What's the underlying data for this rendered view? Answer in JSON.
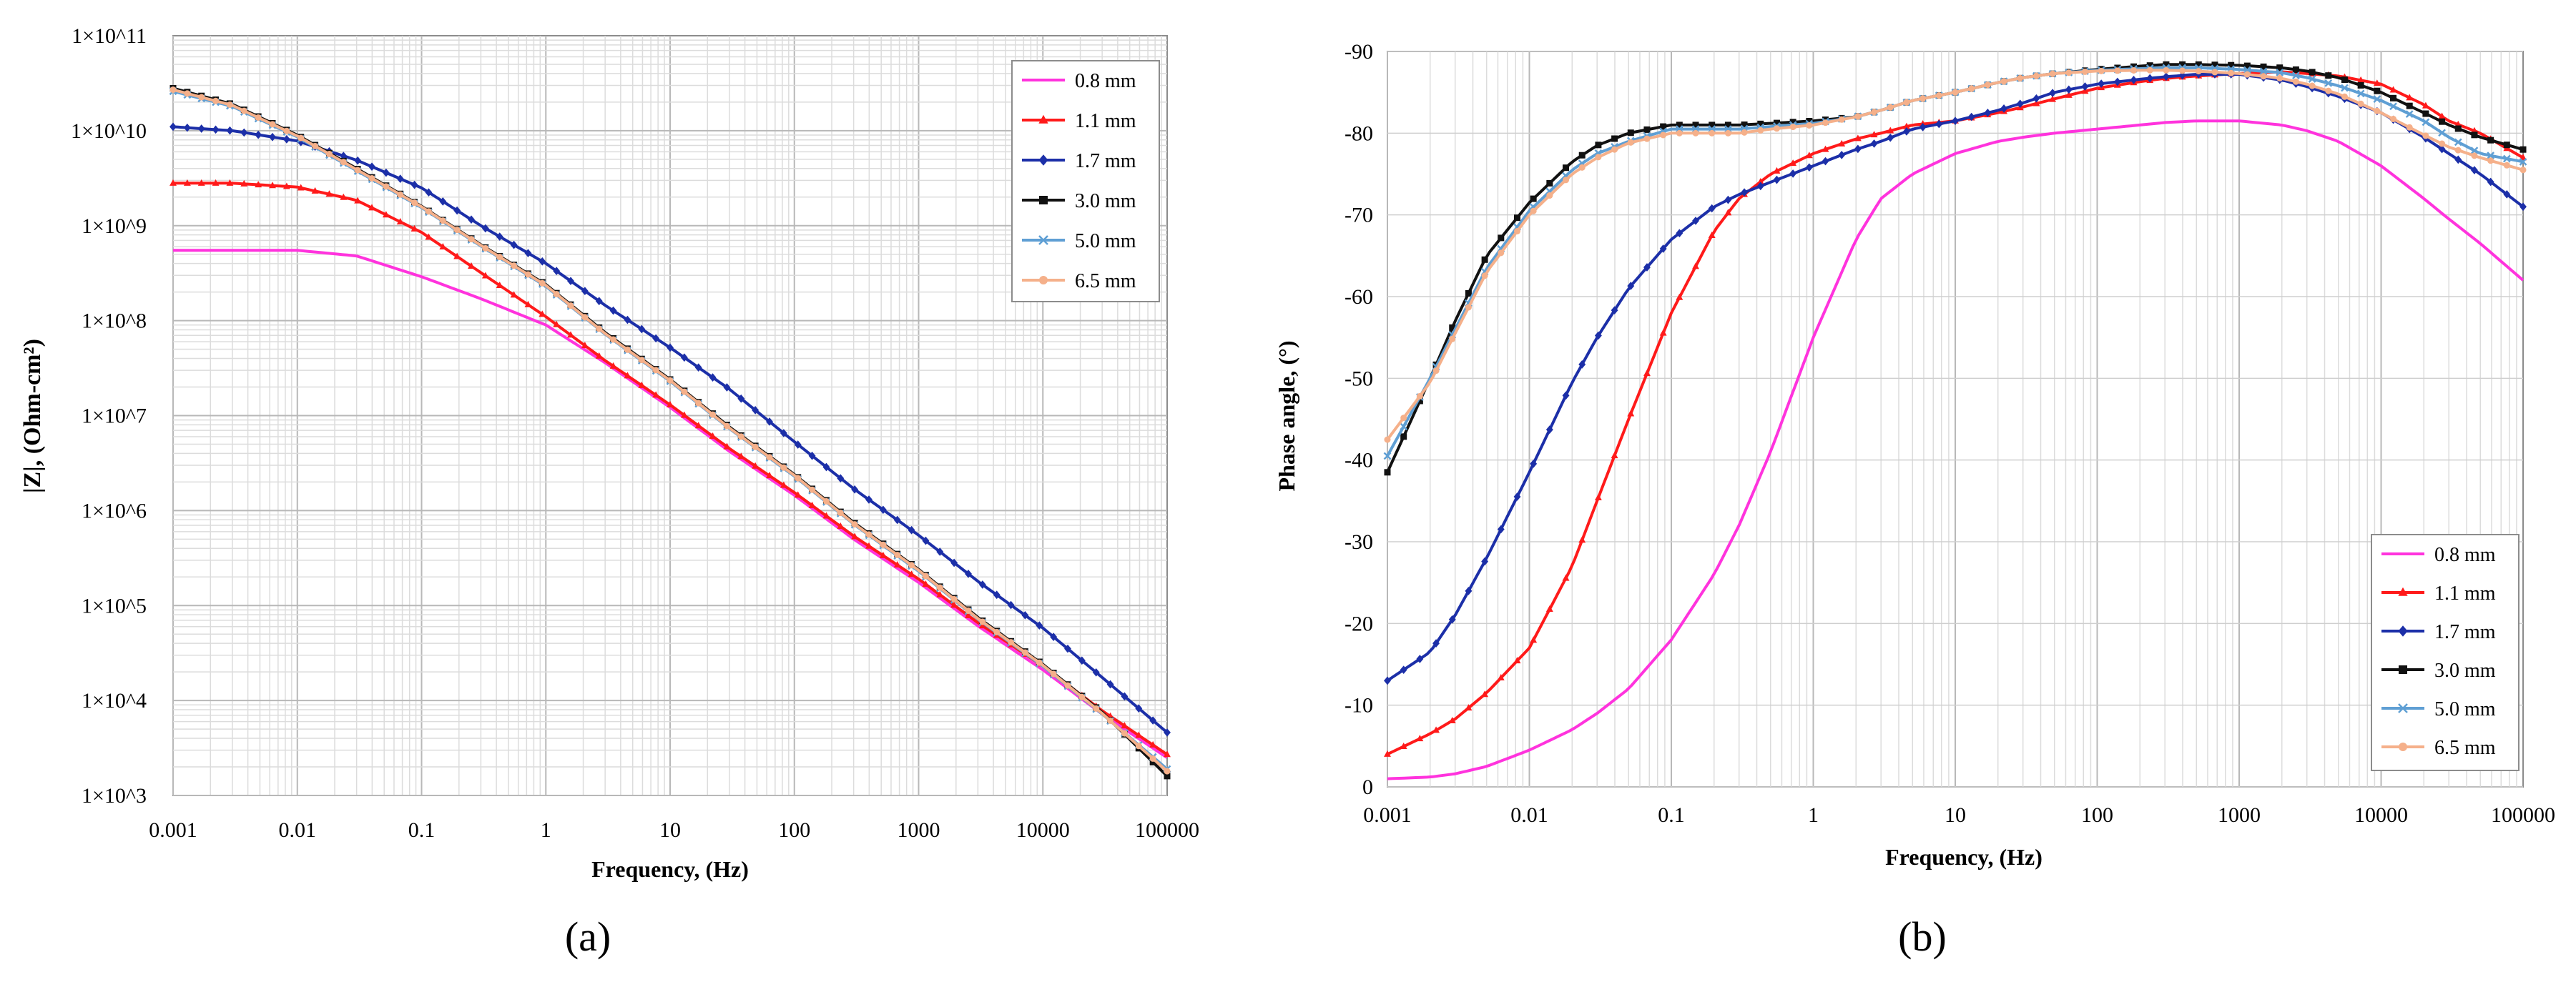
{
  "colors": {
    "0.8 mm": "#ff33dd",
    "1.1 mm": "#ff1a1a",
    "1.7 mm": "#1c2fa8",
    "3.0 mm": "#111111",
    "5.0 mm": "#5f9fd4",
    "6.5 mm": "#f5b08a"
  },
  "chart_data": [
    {
      "panel_label": "(a)",
      "type": "line",
      "x_scale": "log",
      "y_scale": "log",
      "title": "",
      "xlabel": "Frequency, (Hz)",
      "ylabel": "|Z|, (Ohm-cm²)",
      "xlim": [
        0.001,
        100000
      ],
      "ylim": [
        1000,
        100000000000
      ],
      "grid": true,
      "legend_position": "top-right",
      "x_ticks": [
        0.001,
        0.01,
        0.1,
        1,
        10,
        100,
        1000,
        10000,
        100000
      ],
      "x_tick_labels": [
        "0.001",
        "0.01",
        "0.1",
        "1",
        "10",
        "100",
        "1000",
        "10000",
        "100000"
      ],
      "y_ticks": [
        1000,
        10000,
        100000,
        1000000,
        10000000,
        100000000,
        1000000000,
        10000000000,
        100000000000
      ],
      "y_tick_labels": [
        "1×10^3",
        "1×10^4",
        "1×10^5",
        "1×10^6",
        "1×10^7",
        "1×10^8",
        "1×10^9",
        "1×10^10",
        "1×10^11"
      ],
      "x": [
        0.001,
        0.003,
        0.01,
        0.03,
        0.1,
        0.3,
        1,
        3,
        10,
        30,
        100,
        300,
        1000,
        3000,
        10000,
        30000,
        100000
      ],
      "series": [
        {
          "name": "0.8 mm",
          "marker": "none",
          "values": [
            550000000.0,
            550000000.0,
            550000000.0,
            480000000.0,
            290000000.0,
            170000000.0,
            90000000.0,
            36000000.0,
            12200000.0,
            4200000.0,
            1450000.0,
            500000.0,
            175000.0,
            61000.0,
            21000.0,
            7200.0,
            2500.0
          ]
        },
        {
          "name": "1.1 mm",
          "marker": "triangle",
          "values": [
            2800000000.0,
            2800000000.0,
            2550000000.0,
            1850000000.0,
            850000000.0,
            320000000.0,
            110000000.0,
            38000000.0,
            13000000.0,
            4500000.0,
            1550000.0,
            540000.0,
            190000.0,
            66000.0,
            23000.0,
            7800.0,
            2700.0
          ]
        },
        {
          "name": "1.7 mm",
          "marker": "diamond",
          "values": [
            11000000000.0,
            10000000000.0,
            7800000000.0,
            4900000000.0,
            2500000000.0,
            1000000000.0,
            400000000.0,
            145000000.0,
            52000000.0,
            19000000.0,
            5300000.0,
            1700000.0,
            550000.0,
            180000.0,
            58000.0,
            17500.0,
            4600.0
          ]
        },
        {
          "name": "3.0 mm",
          "marker": "square",
          "values": [
            28000000000.0,
            19000000000.0,
            9000000000.0,
            4000000000.0,
            1600000000.0,
            630000000.0,
            240000000.0,
            75000000.0,
            24000000.0,
            7600000.0,
            2400000.0,
            750000.0,
            240000.0,
            75000.0,
            24000.0,
            7500.0,
            1600.0
          ]
        },
        {
          "name": "5.0 mm",
          "marker": "x",
          "values": [
            26000000000.0,
            18000000000.0,
            8600000000.0,
            3800000000.0,
            1550000000.0,
            610000000.0,
            230000000.0,
            72000000.0,
            23000000.0,
            7300000.0,
            2300000.0,
            720000.0,
            230000.0,
            72000.0,
            23000.0,
            7200.0,
            1900.0
          ]
        },
        {
          "name": "6.5 mm",
          "marker": "circle",
          "values": [
            27000000000.0,
            18500000000.0,
            8800000000.0,
            3900000000.0,
            1580000000.0,
            620000000.0,
            235000000.0,
            73000000.0,
            23500000.0,
            7400000.0,
            2350000.0,
            730000.0,
            235000.0,
            73000.0,
            23500.0,
            7300.0,
            1800.0
          ]
        }
      ]
    },
    {
      "panel_label": "(b)",
      "type": "line",
      "x_scale": "log",
      "y_scale": "linear",
      "title": "",
      "xlabel": "Frequency, (Hz)",
      "ylabel": "Phase angle, (°)",
      "xlim": [
        0.001,
        100000
      ],
      "ylim": [
        0,
        -90
      ],
      "grid": true,
      "legend_position": "bottom-right",
      "x_ticks": [
        0.001,
        0.01,
        0.1,
        1,
        10,
        100,
        1000,
        10000,
        100000
      ],
      "x_tick_labels": [
        "0.001",
        "0.01",
        "0.1",
        "1",
        "10",
        "100",
        "1000",
        "10000",
        "100000"
      ],
      "y_ticks": [
        0,
        -10,
        -20,
        -30,
        -40,
        -50,
        -60,
        -70,
        -80,
        -90
      ],
      "y_tick_labels": [
        "0",
        "-10",
        "-20",
        "-30",
        "-40",
        "-50",
        "-60",
        "-70",
        "-80",
        "-90"
      ],
      "x": [
        0.001,
        0.002,
        0.003,
        0.005,
        0.01,
        0.02,
        0.03,
        0.05,
        0.1,
        0.2,
        0.3,
        0.5,
        1,
        2,
        3,
        5,
        10,
        20,
        30,
        50,
        100,
        200,
        300,
        500,
        1000,
        2000,
        3000,
        5000,
        10000,
        20000,
        30000,
        50000,
        100000
      ],
      "series": [
        {
          "name": "0.8 mm",
          "marker": "none",
          "values": [
            -1,
            -1.2,
            -1.6,
            -2.5,
            -4.5,
            -7,
            -9,
            -12,
            -18,
            -26,
            -32,
            -41,
            -55,
            -67,
            -72,
            -75,
            -77.5,
            -79,
            -79.5,
            -80,
            -80.5,
            -81,
            -81.3,
            -81.5,
            -81.5,
            -81,
            -80.3,
            -79,
            -76,
            -72,
            -69.5,
            -66.5,
            -62
          ]
        },
        {
          "name": "1.1 mm",
          "marker": "triangle",
          "values": [
            -4,
            -6.5,
            -8.3,
            -11.5,
            -17,
            -27,
            -35,
            -45,
            -58,
            -68,
            -72,
            -75,
            -77.5,
            -79.3,
            -80,
            -81,
            -81.5,
            -82.5,
            -83.2,
            -84.2,
            -85.5,
            -86.3,
            -86.7,
            -87,
            -87.3,
            -87.5,
            -87.3,
            -87,
            -86,
            -83.5,
            -81.5,
            -80,
            -77
          ]
        },
        {
          "name": "1.7 mm",
          "marker": "diamond",
          "values": [
            -13,
            -16.5,
            -21,
            -28,
            -38.5,
            -49.5,
            -55,
            -61,
            -67,
            -71,
            -72.5,
            -74,
            -76,
            -78,
            -79,
            -80.5,
            -81.5,
            -82.8,
            -83.7,
            -85,
            -86,
            -86.6,
            -86.9,
            -87.2,
            -87.2,
            -86.5,
            -85.7,
            -84.5,
            -82.5,
            -79.5,
            -77.5,
            -75,
            -71
          ]
        },
        {
          "name": "3.0 mm",
          "marker": "square",
          "values": [
            -38.5,
            -50,
            -57,
            -65,
            -71.5,
            -76.5,
            -78.5,
            -80,
            -81,
            -81,
            -81,
            -81.2,
            -81.5,
            -82,
            -82.8,
            -84,
            -85,
            -86.2,
            -86.8,
            -87.3,
            -87.8,
            -88.2,
            -88.4,
            -88.4,
            -88.3,
            -88,
            -87.6,
            -86.8,
            -85,
            -82.5,
            -81,
            -79.5,
            -78
          ]
        },
        {
          "name": "5.0 mm",
          "marker": "x",
          "values": [
            -40.5,
            -50,
            -56,
            -63.5,
            -70.5,
            -75.5,
            -77.5,
            -79,
            -80.5,
            -80.5,
            -80.5,
            -80.8,
            -81.2,
            -82,
            -82.8,
            -84,
            -85,
            -86.2,
            -86.8,
            -87.3,
            -87.7,
            -87.9,
            -88,
            -88,
            -87.8,
            -87.4,
            -86.8,
            -85.8,
            -84,
            -81.5,
            -79.5,
            -77.5,
            -76.5
          ]
        },
        {
          "name": "6.5 mm",
          "marker": "circle",
          "values": [
            -42.5,
            -49.5,
            -55.5,
            -63,
            -70,
            -75,
            -77,
            -78.8,
            -80,
            -80,
            -80,
            -80.5,
            -81,
            -82,
            -82.8,
            -84,
            -85,
            -86.2,
            -86.8,
            -87.3,
            -87.6,
            -87.7,
            -87.7,
            -87.6,
            -87.3,
            -86.7,
            -86,
            -84.8,
            -82.5,
            -79.8,
            -78.3,
            -77,
            -75.5
          ]
        }
      ]
    }
  ]
}
